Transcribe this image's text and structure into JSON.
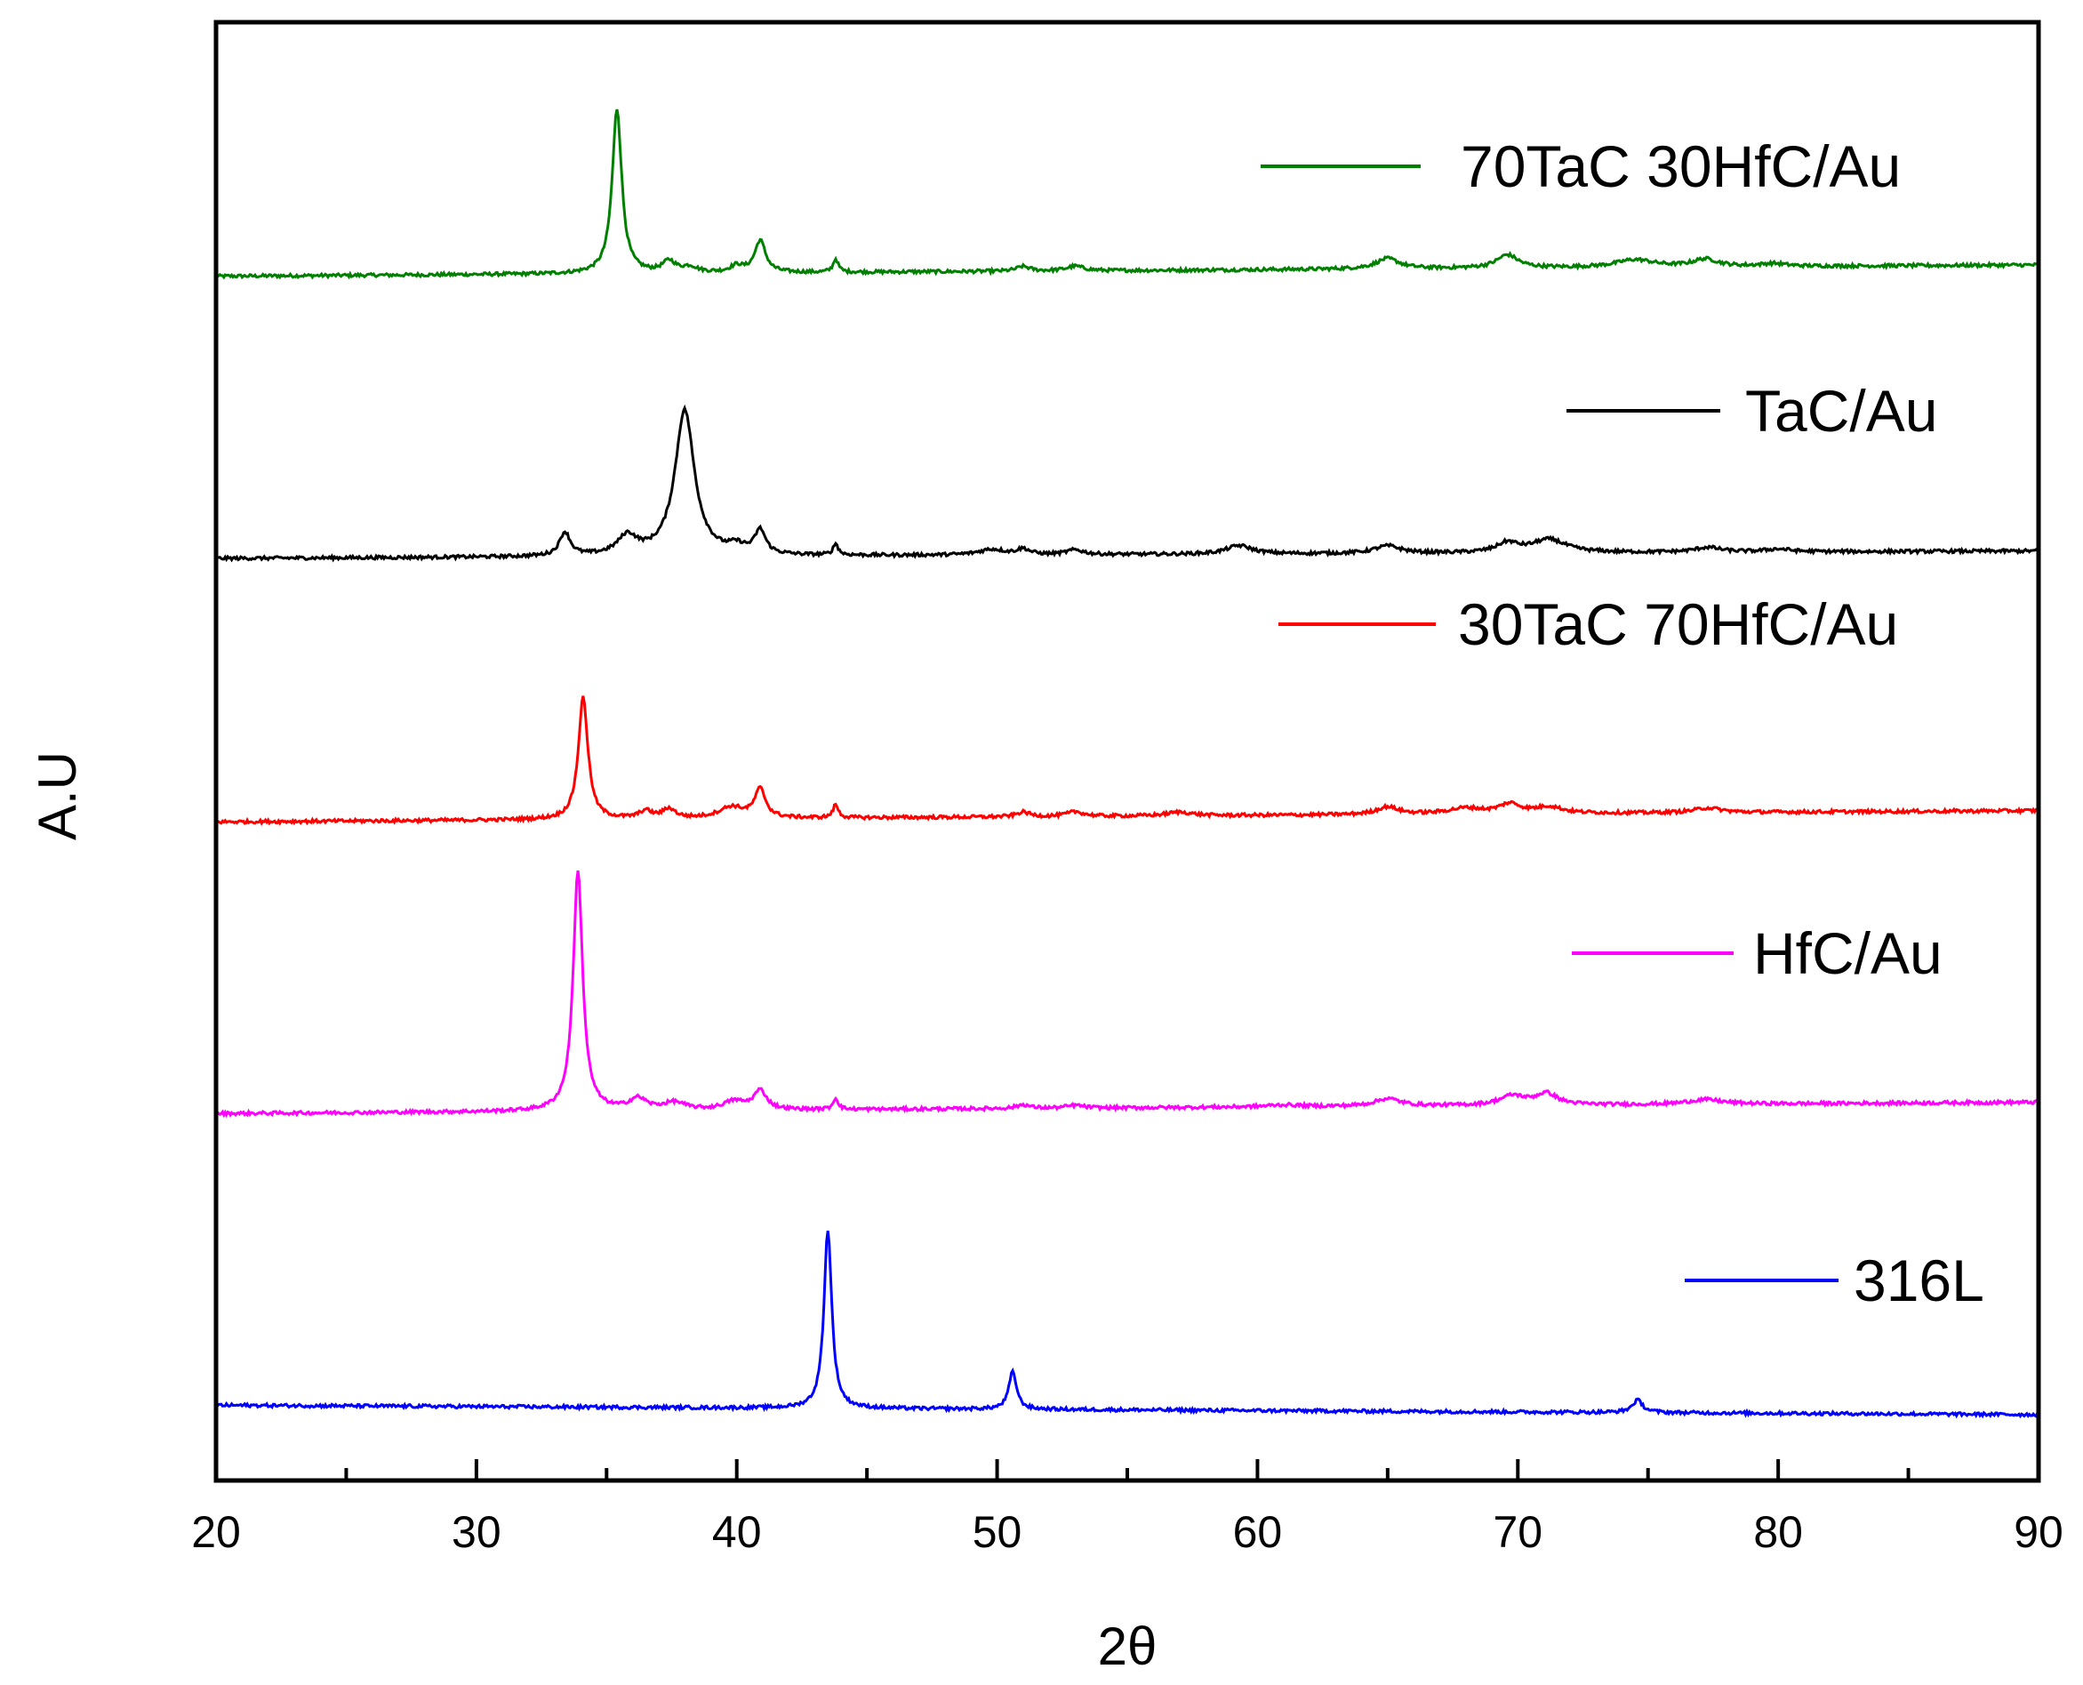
{
  "chart_data": {
    "type": "line",
    "title": "",
    "xlabel": "2θ",
    "ylabel": "A.U",
    "xlim": [
      20,
      90
    ],
    "xticks": [
      20,
      30,
      40,
      50,
      60,
      70,
      80,
      90
    ],
    "xminor": [
      25,
      35,
      45,
      55,
      65,
      75,
      85
    ],
    "grid": false,
    "yticks_shown": false,
    "legend": "inline labels at right of each trace",
    "series": [
      {
        "name": "70TaC 30HfC/Au",
        "color": "#008000",
        "baseline": 12.0,
        "end_offset": 0.12,
        "peaks": [
          [
            35.4,
            1.75,
            0.22
          ],
          [
            37.4,
            0.12,
            0.3
          ],
          [
            38.2,
            0.06,
            0.35
          ],
          [
            40.0,
            0.07,
            0.3
          ],
          [
            40.9,
            0.34,
            0.25
          ],
          [
            43.8,
            0.14,
            0.12
          ],
          [
            51.0,
            0.05,
            0.3
          ],
          [
            53.0,
            0.05,
            0.4
          ],
          [
            65.0,
            0.11,
            0.55
          ],
          [
            69.6,
            0.14,
            0.5
          ],
          [
            74.5,
            0.08,
            0.9
          ],
          [
            77.2,
            0.08,
            0.6
          ],
          [
            79.8,
            0.03,
            0.6
          ]
        ]
      },
      {
        "name": "TaC/Au",
        "color": "#000000",
        "baseline": 9.0,
        "end_offset": 0.08,
        "peaks": [
          [
            33.4,
            0.25,
            0.25
          ],
          [
            35.8,
            0.2,
            0.45
          ],
          [
            38.0,
            1.55,
            0.45
          ],
          [
            40.0,
            0.08,
            0.4
          ],
          [
            40.9,
            0.25,
            0.25
          ],
          [
            43.8,
            0.12,
            0.12
          ],
          [
            49.8,
            0.06,
            0.6
          ],
          [
            51.0,
            0.06,
            0.3
          ],
          [
            53.0,
            0.05,
            0.4
          ],
          [
            59.3,
            0.09,
            0.6
          ],
          [
            65.0,
            0.08,
            0.6
          ],
          [
            69.6,
            0.1,
            0.5
          ],
          [
            71.2,
            0.14,
            0.8
          ],
          [
            77.3,
            0.05,
            0.6
          ],
          [
            80.0,
            0.03,
            0.6
          ]
        ]
      },
      {
        "name": "30TaC 70HfC/Au",
        "color": "#ff0000",
        "baseline": 6.2,
        "end_offset": 0.12,
        "peaks": [
          [
            34.1,
            1.3,
            0.22
          ],
          [
            36.5,
            0.08,
            0.3
          ],
          [
            37.4,
            0.1,
            0.3
          ],
          [
            39.8,
            0.12,
            0.6
          ],
          [
            40.9,
            0.3,
            0.25
          ],
          [
            43.8,
            0.14,
            0.12
          ],
          [
            51.0,
            0.05,
            0.3
          ],
          [
            53.0,
            0.05,
            0.4
          ],
          [
            57.0,
            0.04,
            0.6
          ],
          [
            65.0,
            0.08,
            0.5
          ],
          [
            68.0,
            0.06,
            0.8
          ],
          [
            69.7,
            0.1,
            0.5
          ],
          [
            71.2,
            0.07,
            0.6
          ],
          [
            77.3,
            0.05,
            0.6
          ]
        ]
      },
      {
        "name": "HfC/Au",
        "color": "#ff00ff",
        "baseline": 3.1,
        "end_offset": 0.12,
        "peaks": [
          [
            33.9,
            2.55,
            0.22
          ],
          [
            36.2,
            0.12,
            0.4
          ],
          [
            37.6,
            0.08,
            0.5
          ],
          [
            39.9,
            0.09,
            0.5
          ],
          [
            40.9,
            0.2,
            0.3
          ],
          [
            43.8,
            0.12,
            0.12
          ],
          [
            51.0,
            0.04,
            0.3
          ],
          [
            53.0,
            0.03,
            0.4
          ],
          [
            61.0,
            0.02,
            0.8
          ],
          [
            65.0,
            0.08,
            0.6
          ],
          [
            69.8,
            0.1,
            0.6
          ],
          [
            71.1,
            0.12,
            0.5
          ],
          [
            77.2,
            0.05,
            0.8
          ]
        ]
      },
      {
        "name": "316L",
        "color": "#0000ff",
        "baseline": 0.0,
        "end_offset": -0.1,
        "peaks": [
          [
            43.5,
            1.9,
            0.18
          ],
          [
            50.6,
            0.4,
            0.18
          ],
          [
            74.6,
            0.13,
            0.25
          ]
        ]
      }
    ]
  }
}
